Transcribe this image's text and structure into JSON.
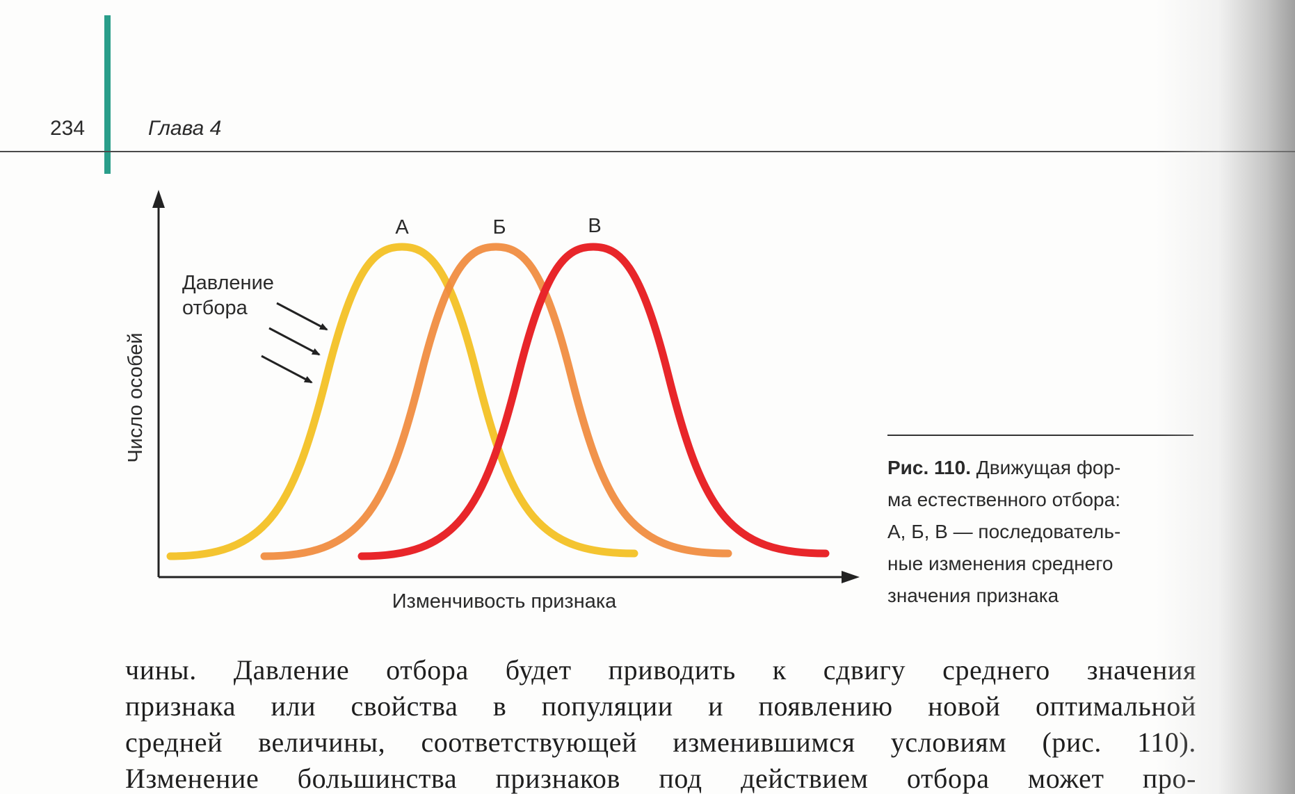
{
  "header": {
    "page_number": "234",
    "chapter": "Глава 4"
  },
  "figure": {
    "y_axis_label": "Число особей",
    "x_axis_label": "Изменчивость признака",
    "pressure_label_line1": "Давление",
    "pressure_label_line2": "отбора",
    "curves": [
      {
        "label": "А",
        "color": "#f4c430"
      },
      {
        "label": "Б",
        "color": "#f08a3c"
      },
      {
        "label": "В",
        "color": "#e8262a"
      }
    ]
  },
  "caption": {
    "figure_label": "Рис. 110.",
    "lines": [
      "Движущая фор-",
      "ма естественного отбора:",
      "А, Б, В — последователь-",
      "ные изменения среднего",
      "значения признака"
    ]
  },
  "body": {
    "lines": [
      "чины. Давление отбора будет приводить к сдвигу среднего значения",
      "признака или свойства в популяции и появлению новой оптимальной",
      "средней величины, соответствующей изменившимся условиям (рис. 110).",
      "Изменение большинства признаков под действием отбора может про-"
    ]
  }
}
